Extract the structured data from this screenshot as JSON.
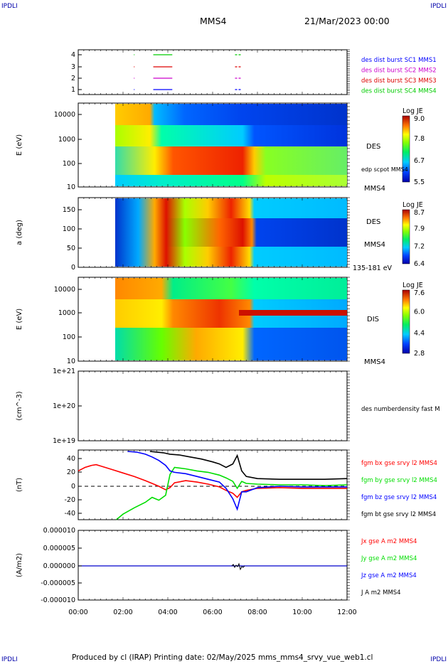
{
  "corners": {
    "tl": "IPDLI",
    "tr": "IPDLI",
    "bl": "IPDLI",
    "br": "IPDLI"
  },
  "header": {
    "spacecraft": "MMS4",
    "datetime": "21/Mar/2023 00:00"
  },
  "footer": {
    "text": "Produced by cl (IRAP)   Printing date: 02/May/2025   mms_mms4_srvy_vue_web1.cl"
  },
  "colors": {
    "mms1": "#0000ff",
    "mms2": "#cc00cc",
    "mms3": "#dd0000",
    "mms4": "#00cc00",
    "bx": "#ff0000",
    "by": "#00dd00",
    "bz": "#0000ff",
    "bt": "#000000"
  },
  "chart_data": [
    {
      "type": "line",
      "panel": "burst-availability",
      "yticks": [
        "1",
        "2",
        "3",
        "4"
      ],
      "legend": [
        "des dist burst SC1 MMS1",
        "des dist burst SC2 MMS2",
        "des dist burst SC3 MMS3",
        "des dist burst SC4 MMS4"
      ],
      "segments_hours": [
        [
          3.35,
          4.2
        ],
        [
          7.0,
          7.3
        ]
      ]
    },
    {
      "type": "heatmap",
      "panel": "des-energy",
      "ylabel": "E (eV)",
      "yscale": "log",
      "ylim": [
        10,
        30000
      ],
      "yticks": [
        "10000",
        "1000",
        "100",
        "10"
      ],
      "colorbar": {
        "title": "Log JE",
        "ticks": [
          "9.0",
          "7.8",
          "6.7",
          "5.5"
        ]
      },
      "labels": {
        "instrument": "DES",
        "overlay": "edp scpot MMS4",
        "sc": "MMS4"
      }
    },
    {
      "type": "heatmap",
      "panel": "des-pitch-angle",
      "ylabel": "a (deg)",
      "ylim": [
        0,
        180
      ],
      "yticks": [
        "150",
        "100",
        "50",
        "0"
      ],
      "colorbar": {
        "title": "Log JE",
        "ticks": [
          "8.7",
          "7.9",
          "7.2",
          "6.4"
        ]
      },
      "labels": {
        "instrument": "DES",
        "sc": "MMS4",
        "range": "135-181 eV"
      }
    },
    {
      "type": "heatmap",
      "panel": "dis-energy",
      "ylabel": "E (eV)",
      "yscale": "log",
      "ylim": [
        10,
        30000
      ],
      "yticks": [
        "10000",
        "1000",
        "100",
        "10"
      ],
      "colorbar": {
        "title": "Log JE",
        "ticks": [
          "7.6",
          "6.0",
          "4.4",
          "2.8"
        ]
      },
      "labels": {
        "instrument": "DIS",
        "sc": "MMS4"
      }
    },
    {
      "type": "line",
      "panel": "density",
      "ylabel": "(cm^-3)",
      "yscale": "log",
      "yticks": [
        "1e+21",
        "1e+20",
        "1e+19"
      ],
      "legend": [
        "des numberdensity fast M"
      ]
    },
    {
      "type": "line",
      "panel": "magnetic-field",
      "ylabel": "(nT)",
      "ylim": [
        -50,
        50
      ],
      "yticks": [
        "40",
        "20",
        "0",
        "-20",
        "-40"
      ],
      "legend": [
        "fgm bx gse srvy l2 MMS4",
        "fgm by gse srvy l2 MMS4",
        "fgm bz gse srvy l2 MMS4",
        "fgm bt gse srvy l2 MMS4"
      ],
      "series": [
        {
          "name": "fgm bx gse srvy l2 MMS4",
          "color": "#ff0000",
          "x": [
            0,
            0.3,
            0.6,
            0.8,
            1.0,
            1.5,
            2.0,
            2.5,
            3.0,
            3.3,
            3.6,
            3.9,
            4.1,
            4.3,
            4.8,
            5.3,
            5.8,
            6.3,
            6.6,
            6.9,
            7.1,
            7.3,
            7.5,
            8.0,
            9.0,
            10.0,
            11.0,
            12.0
          ],
          "y": [
            20,
            25,
            28,
            29,
            27,
            22,
            17,
            12,
            6,
            2,
            -2,
            -7,
            -4,
            3,
            6,
            4,
            1,
            -3,
            -8,
            -12,
            -18,
            -10,
            -8,
            -5,
            -4,
            -5,
            -5,
            -5
          ]
        },
        {
          "name": "fgm by gse srvy l2 MMS4",
          "color": "#00dd00",
          "x": [
            1.7,
            2.0,
            2.5,
            3.0,
            3.3,
            3.6,
            3.9,
            4.1,
            4.3,
            4.8,
            5.3,
            5.8,
            6.3,
            6.6,
            6.9,
            7.1,
            7.3,
            7.5,
            8.0,
            9.0,
            10.0,
            11.0,
            12.0
          ],
          "y": [
            -50,
            -42,
            -33,
            -25,
            -18,
            -22,
            -15,
            15,
            25,
            23,
            20,
            18,
            14,
            10,
            5,
            -5,
            5,
            2,
            1,
            0,
            0,
            -1,
            0
          ]
        },
        {
          "name": "fgm bz gse srvy l2 MMS4",
          "color": "#0000ff",
          "x": [
            2.2,
            2.6,
            3.0,
            3.3,
            3.6,
            3.9,
            4.1,
            4.3,
            4.8,
            5.3,
            5.8,
            6.3,
            6.6,
            6.9,
            7.1,
            7.3,
            7.5,
            8.0,
            9.0,
            10.0,
            11.0,
            12.0
          ],
          "y": [
            48,
            47,
            44,
            40,
            35,
            28,
            20,
            18,
            16,
            12,
            8,
            4,
            -5,
            -20,
            -35,
            -10,
            -10,
            -4,
            -2,
            -3,
            -3,
            -3
          ]
        },
        {
          "name": "fgm bt gse srvy l2 MMS4",
          "color": "#000000",
          "x": [
            3.2,
            3.5,
            3.8,
            4.1,
            4.5,
            5.0,
            5.5,
            6.0,
            6.3,
            6.6,
            6.9,
            7.1,
            7.3,
            7.5,
            8.0,
            9.0,
            10.0,
            11.0,
            12.0
          ],
          "y": [
            48,
            47,
            46,
            44,
            43,
            40,
            37,
            33,
            30,
            25,
            30,
            42,
            20,
            12,
            9,
            8,
            8,
            8,
            9
          ]
        }
      ]
    },
    {
      "type": "line",
      "panel": "current-density",
      "ylabel": "(A/m2)",
      "ylim": [
        -1e-05,
        1e-05
      ],
      "yticks": [
        "0.000010",
        "0.000005",
        "0.000000",
        "-0.000005",
        "-0.000010"
      ],
      "legend": [
        "Jx gse A m2 MMS4",
        "Jy gse A m2 MMS4",
        "Jz gse A m2 MMS4",
        "J A m2 MMS4"
      ]
    }
  ],
  "time_axis": {
    "ticks": [
      "00:00",
      "02:00",
      "04:00",
      "06:00",
      "08:00",
      "10:00",
      "12:00"
    ],
    "range_hours": [
      0,
      12
    ]
  }
}
